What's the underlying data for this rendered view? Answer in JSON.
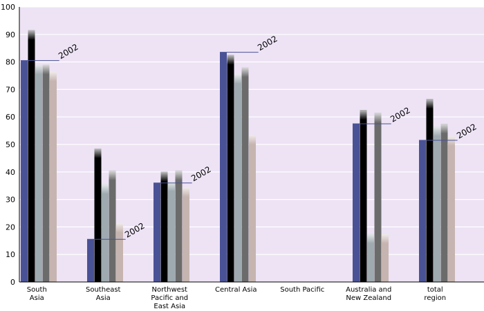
{
  "chart_data": {
    "type": "bar",
    "ylim": [
      0,
      100
    ],
    "yticks": [
      0,
      10,
      20,
      30,
      40,
      50,
      60,
      70,
      80,
      90,
      100
    ],
    "grid": true,
    "categories": [
      [
        "South",
        "Asia"
      ],
      [
        "Southeast",
        "Asia"
      ],
      [
        "Northwest",
        "Pacific and",
        "East Asia"
      ],
      [
        "Central Asia"
      ],
      [
        "South Pacific"
      ],
      [
        "Australia and",
        "New Zealand"
      ],
      [
        "total",
        "region"
      ]
    ],
    "series_colors": [
      "#4a5296",
      "#000000",
      "#9eaab0",
      "#6b6b6b",
      "#c6b4b0"
    ],
    "series": [
      {
        "values": [
          80.5,
          15.5,
          36,
          83.5,
          null,
          57.5,
          51.5
        ]
      },
      {
        "values": [
          91.5,
          48.5,
          40,
          82.5,
          null,
          62.5,
          66.5
        ]
      },
      {
        "values": [
          79,
          35.5,
          36.5,
          75.5,
          null,
          17.5,
          56.5
        ]
      },
      {
        "values": [
          79,
          40.5,
          40.5,
          78,
          null,
          61.5,
          57.5
        ]
      },
      {
        "values": [
          76.5,
          21.5,
          34.5,
          53.5,
          null,
          17.5,
          53
        ]
      }
    ],
    "annotation_label": "2002",
    "annotations": [
      {
        "category": 0,
        "series": 0,
        "text": "2002"
      },
      {
        "category": 1,
        "series": 0,
        "text": "2002"
      },
      {
        "category": 2,
        "series": 0,
        "text": "2002"
      },
      {
        "category": 3,
        "series": 0,
        "text": "2002"
      },
      {
        "category": 5,
        "series": 0,
        "text": "2002"
      },
      {
        "category": 6,
        "series": 0,
        "text": "2002"
      }
    ]
  }
}
